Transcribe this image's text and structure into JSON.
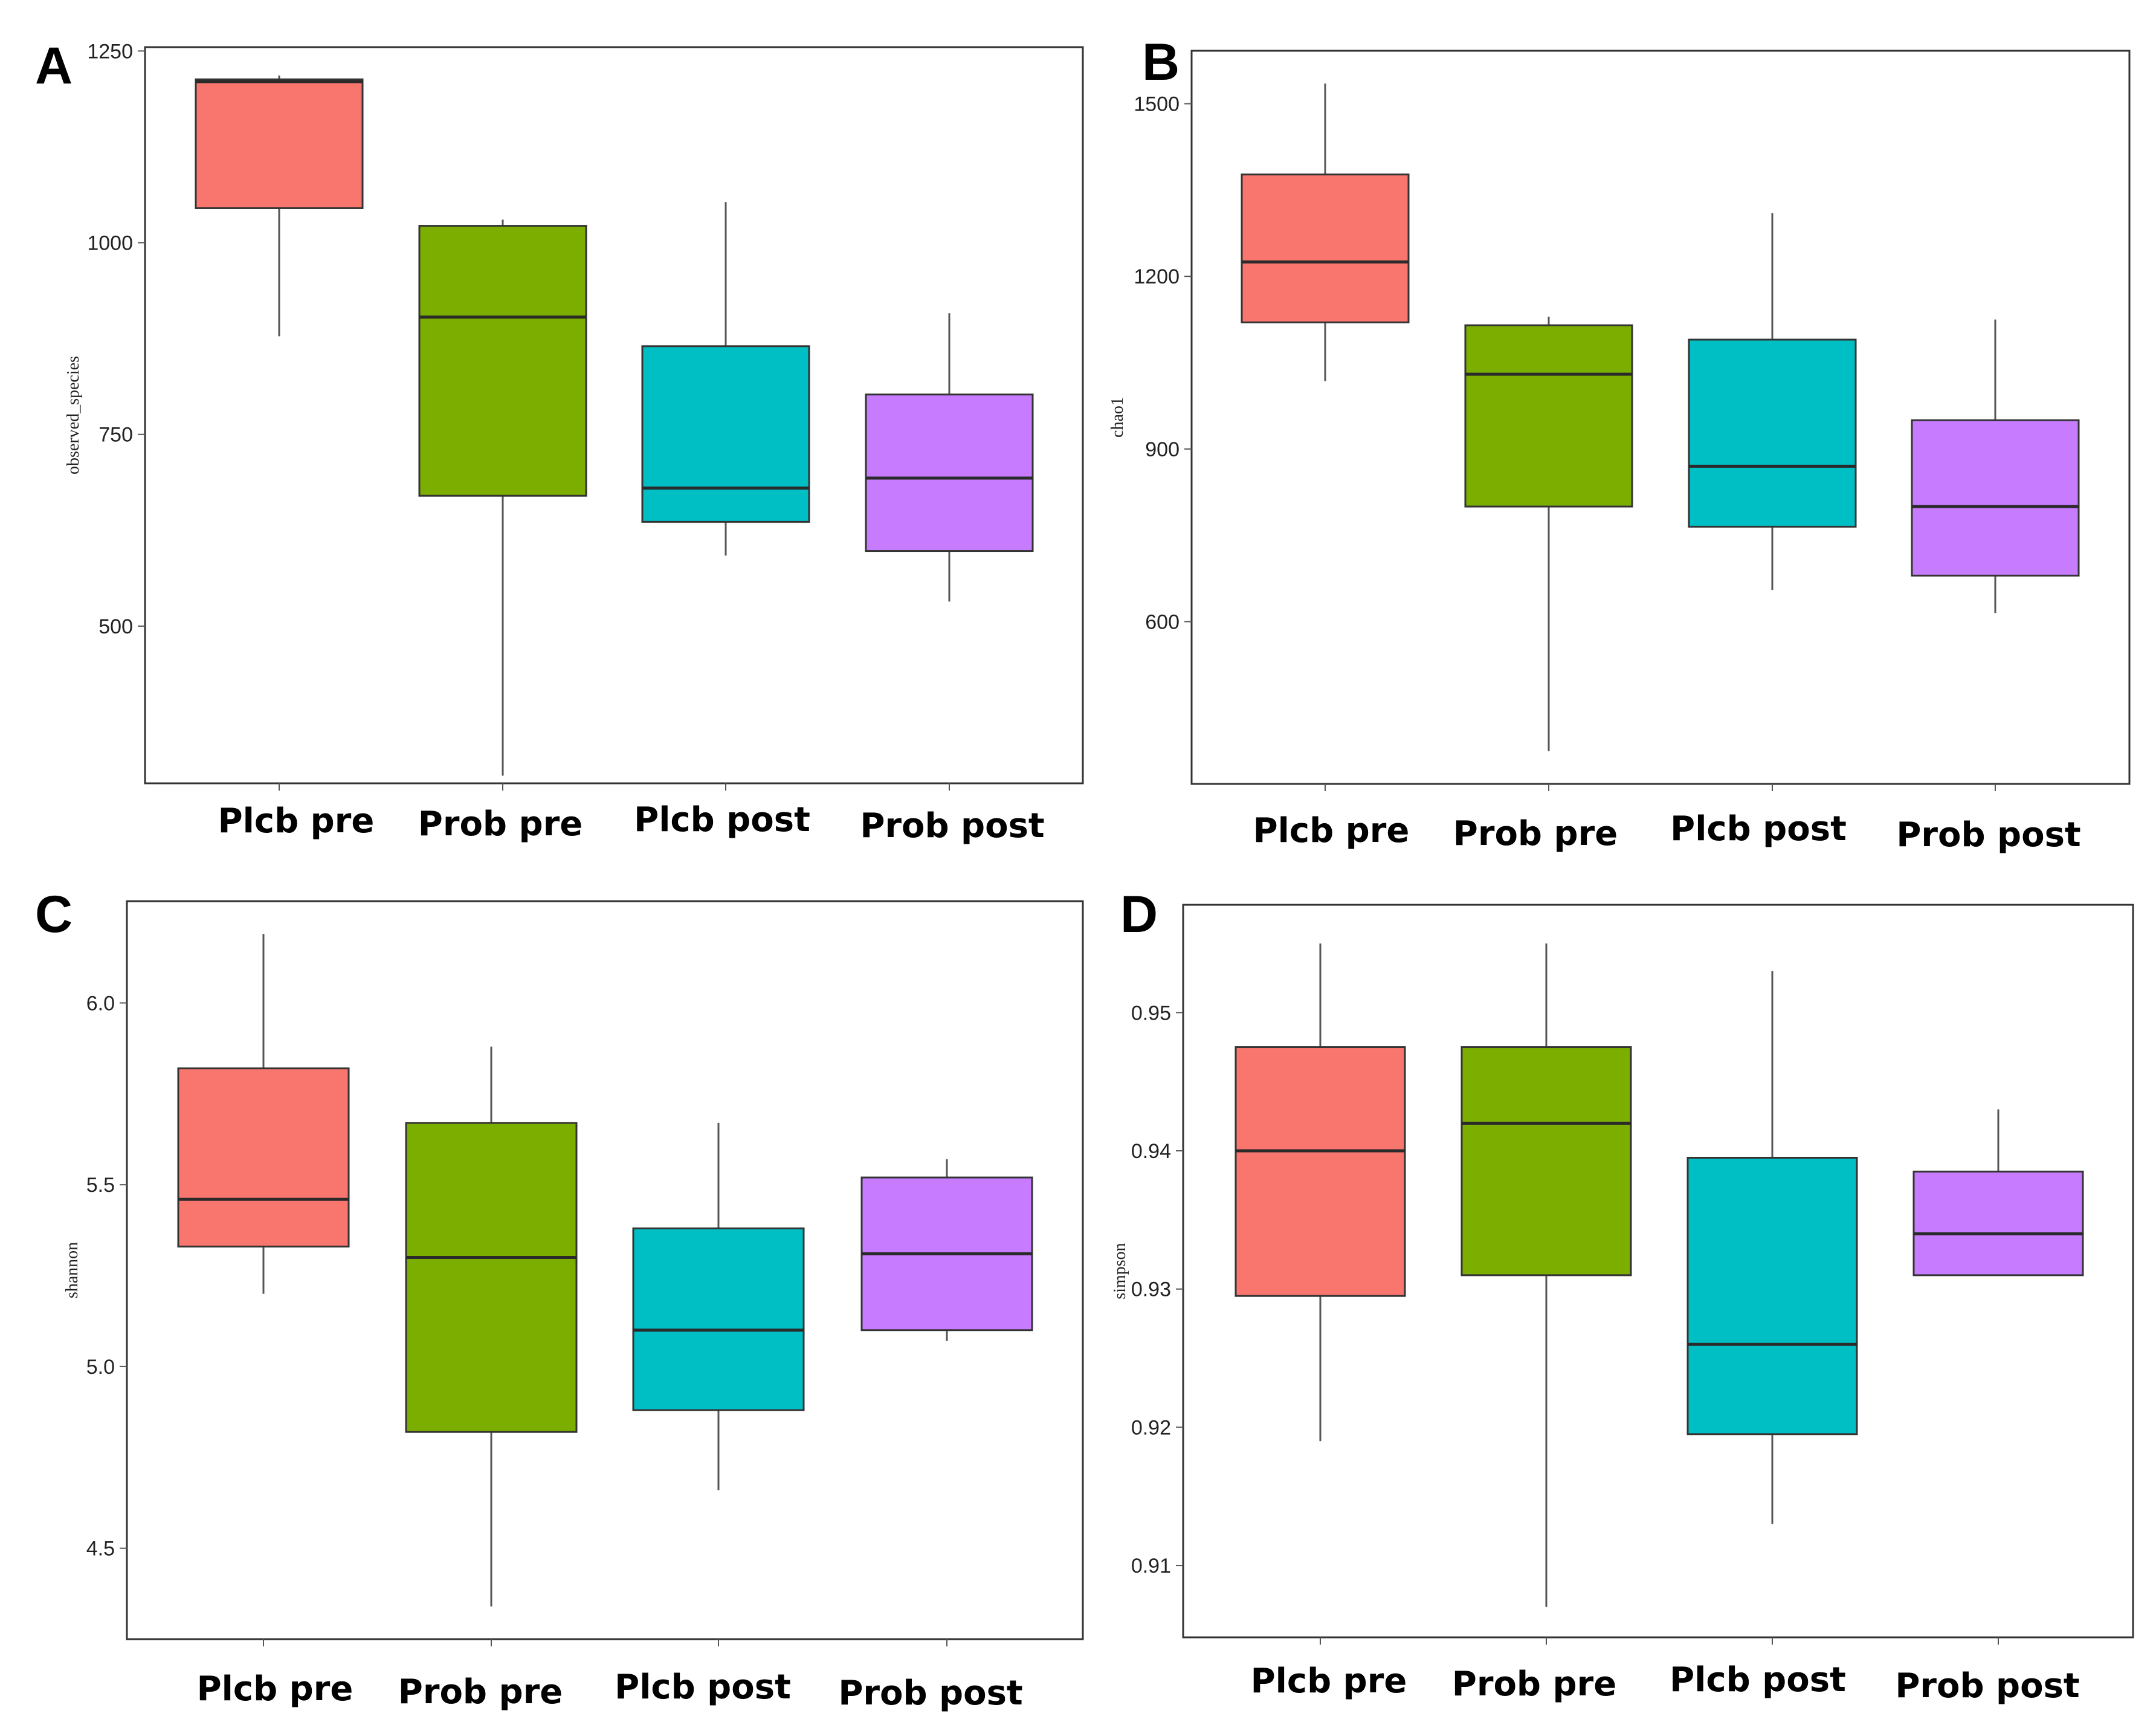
{
  "colors": {
    "group1": "#F8766D",
    "group2": "#7CAE00",
    "group3": "#00BFC4",
    "group4": "#C77CFF"
  },
  "chart_data": [
    {
      "type": "boxplot",
      "panel": "A",
      "ylabel": "observed_species",
      "ylim": [
        295,
        1255
      ],
      "yticks": [
        500,
        750,
        1000,
        1250
      ],
      "categories": [
        "Plcb pre",
        "Prob pre",
        "Plcb post",
        "Prob post"
      ],
      "boxes": [
        {
          "min": 878,
          "q1": 1045,
          "median": 1210,
          "q3": 1213,
          "max": 1218
        },
        {
          "min": 305,
          "q1": 670,
          "median": 903,
          "q3": 1022,
          "max": 1030
        },
        {
          "min": 592,
          "q1": 636,
          "median": 680,
          "q3": 865,
          "max": 1053
        },
        {
          "min": 532,
          "q1": 598,
          "median": 693,
          "q3": 802,
          "max": 908
        }
      ]
    },
    {
      "type": "boxplot",
      "panel": "B",
      "ylabel": "chao1",
      "ylim": [
        318,
        1592
      ],
      "yticks": [
        600,
        900,
        1200,
        1500
      ],
      "categories": [
        "Plcb pre",
        "Prob pre",
        "Plcb post",
        "Prob post"
      ],
      "boxes": [
        {
          "min": 1018,
          "q1": 1120,
          "median": 1225,
          "q3": 1377,
          "max": 1535
        },
        {
          "min": 375,
          "q1": 800,
          "median": 1030,
          "q3": 1115,
          "max": 1130
        },
        {
          "min": 655,
          "q1": 765,
          "median": 870,
          "q3": 1090,
          "max": 1310
        },
        {
          "min": 615,
          "q1": 680,
          "median": 800,
          "q3": 950,
          "max": 1125
        }
      ]
    },
    {
      "type": "boxplot",
      "panel": "C",
      "ylabel": "shannon",
      "ylim": [
        4.25,
        6.28
      ],
      "yticks": [
        4.5,
        5.0,
        5.5,
        6.0
      ],
      "tickFormat": "1dp",
      "categories": [
        "Plcb pre",
        "Prob pre",
        "Plcb post",
        "Prob post"
      ],
      "boxes": [
        {
          "min": 5.2,
          "q1": 5.33,
          "median": 5.46,
          "q3": 5.82,
          "max": 6.19
        },
        {
          "min": 4.34,
          "q1": 4.82,
          "median": 5.3,
          "q3": 5.67,
          "max": 5.88
        },
        {
          "min": 4.66,
          "q1": 4.88,
          "median": 5.1,
          "q3": 5.38,
          "max": 5.67
        },
        {
          "min": 5.07,
          "q1": 5.1,
          "median": 5.31,
          "q3": 5.52,
          "max": 5.57
        }
      ]
    },
    {
      "type": "boxplot",
      "panel": "D",
      "ylabel": "simpson",
      "ylim": [
        0.9048,
        0.9578
      ],
      "yticks": [
        0.91,
        0.92,
        0.93,
        0.94,
        0.95
      ],
      "tickFormat": "2dp",
      "categories": [
        "Plcb pre",
        "Prob pre",
        "Plcb post",
        "Prob post"
      ],
      "boxes": [
        {
          "min": 0.919,
          "q1": 0.9295,
          "median": 0.94,
          "q3": 0.9475,
          "max": 0.955
        },
        {
          "min": 0.907,
          "q1": 0.931,
          "median": 0.942,
          "q3": 0.9475,
          "max": 0.955
        },
        {
          "min": 0.913,
          "q1": 0.9195,
          "median": 0.926,
          "q3": 0.9395,
          "max": 0.953
        },
        {
          "min": 0.931,
          "q1": 0.931,
          "median": 0.934,
          "q3": 0.9385,
          "max": 0.943
        }
      ]
    }
  ]
}
